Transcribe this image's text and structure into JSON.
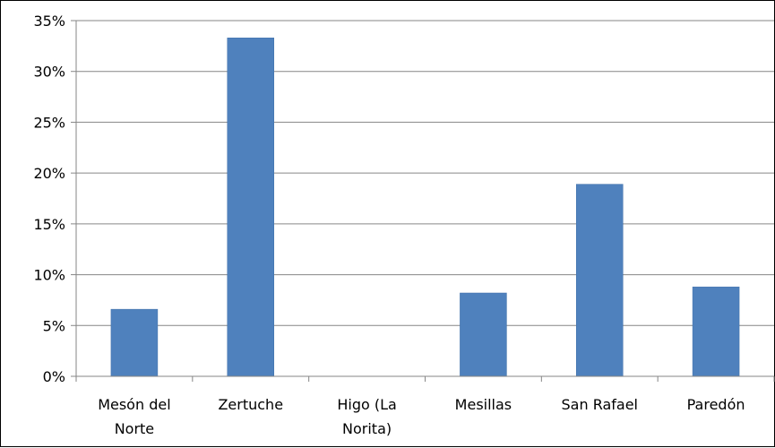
{
  "chart_data": {
    "type": "bar",
    "categories": [
      "Mesón del Norte",
      "Zertuche",
      "Higo (La Norita)",
      "Mesillas",
      "San Rafael",
      "Paredón"
    ],
    "category_label_lines": [
      [
        "Mesón del",
        "Norte"
      ],
      [
        "Zertuche"
      ],
      [
        "Higo (La",
        "Norita)"
      ],
      [
        "Mesillas"
      ],
      [
        "San Rafael"
      ],
      [
        "Paredón"
      ]
    ],
    "values": [
      6.6,
      33.3,
      0,
      8.2,
      18.9,
      8.8
    ],
    "ylim": [
      0,
      35
    ],
    "yticks": [
      0,
      5,
      10,
      15,
      20,
      25,
      30,
      35
    ],
    "ytick_labels": [
      "0%",
      "5%",
      "10%",
      "15%",
      "20%",
      "25%",
      "30%",
      "35%"
    ],
    "title": "",
    "xlabel": "",
    "ylabel": "",
    "grid": true,
    "legend": "none",
    "colors": {
      "bar": "#4F81BD",
      "bar_edge": "#3F6FA8",
      "grid": "#868686",
      "axis": "#868686",
      "text": "#000000"
    }
  }
}
